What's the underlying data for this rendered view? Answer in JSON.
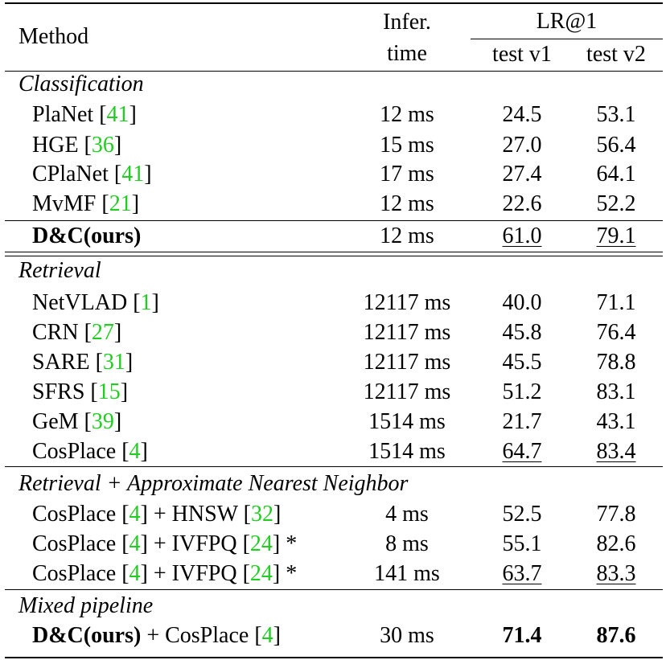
{
  "header": {
    "method": "Method",
    "infer_line1": "Infer.",
    "infer_line2": "time",
    "lr": "LR@1",
    "test_v1": "test v1",
    "test_v2": "test v2"
  },
  "sections": {
    "classification": {
      "title": "Classification",
      "rows": [
        {
          "name": "PlaNet",
          "ref": "41",
          "time": "12 ms",
          "v1": "24.5",
          "v2": "53.1"
        },
        {
          "name": "HGE",
          "ref": "36",
          "time": "15 ms",
          "v1": "27.0",
          "v2": "56.4"
        },
        {
          "name": "CPlaNet",
          "ref": "41",
          "time": "17 ms",
          "v1": "27.4",
          "v2": "64.1"
        },
        {
          "name": "MvMF",
          "ref": "21",
          "time": "12 ms",
          "v1": "22.6",
          "v2": "52.2"
        }
      ],
      "ours": {
        "name": "D&C(ours)",
        "time": "12 ms",
        "v1": "61.0",
        "v2": "79.1"
      }
    },
    "retrieval": {
      "title": "Retrieval",
      "rows": [
        {
          "name": "NetVLAD",
          "ref": "1",
          "time": "12117 ms",
          "v1": "40.0",
          "v2": "71.1"
        },
        {
          "name": "CRN",
          "ref": "27",
          "time": "12117 ms",
          "v1": "45.8",
          "v2": "76.4"
        },
        {
          "name": "SARE",
          "ref": "31",
          "time": "12117 ms",
          "v1": "45.5",
          "v2": "78.8"
        },
        {
          "name": "SFRS",
          "ref": "15",
          "time": "12117 ms",
          "v1": "51.2",
          "v2": "83.1"
        },
        {
          "name": "GeM",
          "ref": "39",
          "time": "1514 ms",
          "v1": "21.7",
          "v2": "43.1"
        },
        {
          "name": "CosPlace",
          "ref": "4",
          "time": "1514 ms",
          "v1": "64.7",
          "v2": "83.4"
        }
      ]
    },
    "ann": {
      "title": "Retrieval + Approximate Nearest Neighbor",
      "rows": [
        {
          "name": "CosPlace",
          "ref": "4",
          "plus": " + HNSW ",
          "ref2": "32",
          "suffix": "",
          "time": "4 ms",
          "v1": "52.5",
          "v2": "77.8"
        },
        {
          "name": "CosPlace",
          "ref": "4",
          "plus": " + IVFPQ ",
          "ref2": "24",
          "suffix": " *",
          "time": "8 ms",
          "v1": "55.1",
          "v2": "82.6"
        },
        {
          "name": "CosPlace",
          "ref": "4",
          "plus": " + IVFPQ ",
          "ref2": "24",
          "suffix": " *",
          "time": "141 ms",
          "v1": "63.7",
          "v2": "83.3"
        }
      ]
    },
    "mixed": {
      "title": "Mixed pipeline",
      "row": {
        "name": "D&C(ours)",
        "plus": " + CosPlace ",
        "ref": "4",
        "time": "30 ms",
        "v1": "71.4",
        "v2": "87.6"
      }
    }
  }
}
